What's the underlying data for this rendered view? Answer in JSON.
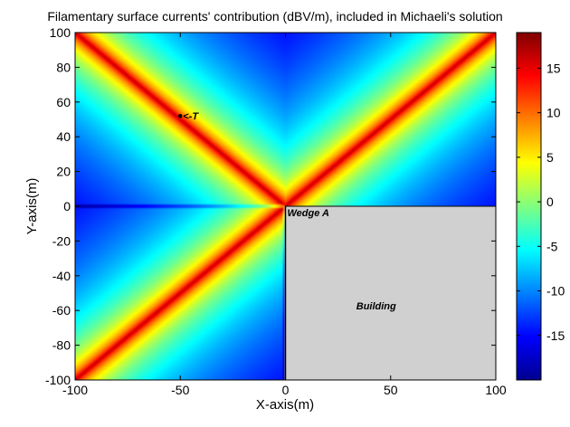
{
  "chart_data": {
    "type": "heatmap",
    "title": "Filamentary surface currents' contribution (dBV/m), included in Michaeli's solution",
    "xlabel": "X-axis(m)",
    "ylabel": "Y-axis(m)",
    "xlim": [
      -100,
      100
    ],
    "ylim": [
      -100,
      100
    ],
    "x_ticks": [
      -100,
      -50,
      0,
      50,
      100
    ],
    "y_ticks": [
      -100,
      -80,
      -60,
      -40,
      -20,
      0,
      20,
      40,
      60,
      80,
      100
    ],
    "x_tick_labels": [
      "-100",
      "-50",
      "0",
      "50",
      "100"
    ],
    "y_tick_labels": [
      "-100",
      "-80",
      "-60",
      "-40",
      "-20",
      "0",
      "20",
      "40",
      "60",
      "80",
      "100"
    ],
    "colorbar": {
      "colormap": "jet",
      "range": [
        -20,
        19
      ],
      "ticks": [
        -15,
        -10,
        -5,
        0,
        5,
        10,
        15
      ],
      "tick_labels": [
        "-15",
        "-10",
        "-5",
        "0",
        "5",
        "10",
        "15"
      ]
    },
    "building": {
      "label": "Building",
      "x_range": [
        0,
        100
      ],
      "y_range": [
        -100,
        0
      ],
      "color": "#d0d0d0"
    },
    "ridges": [
      {
        "from": [
          -100,
          -100
        ],
        "to": [
          100,
          100
        ]
      },
      {
        "from": [
          -100,
          100
        ],
        "to": [
          0,
          0
        ]
      }
    ],
    "annotations": [
      {
        "text": "Wedge A",
        "x": 0,
        "y": 0
      },
      {
        "text": "<-T",
        "x": -50,
        "y": 52
      }
    ],
    "grid": false
  }
}
